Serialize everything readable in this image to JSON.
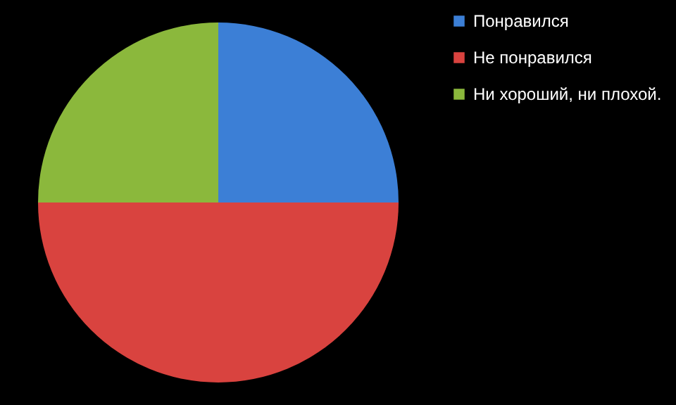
{
  "chart_data": {
    "type": "pie",
    "categories": [
      "Понравился",
      "Не понравился",
      "Ни хороший, ни плохой."
    ],
    "values": [
      25,
      50,
      25
    ],
    "colors": [
      "#3c7fd6",
      "#d9433f",
      "#8bb83c"
    ],
    "legend": "right"
  }
}
